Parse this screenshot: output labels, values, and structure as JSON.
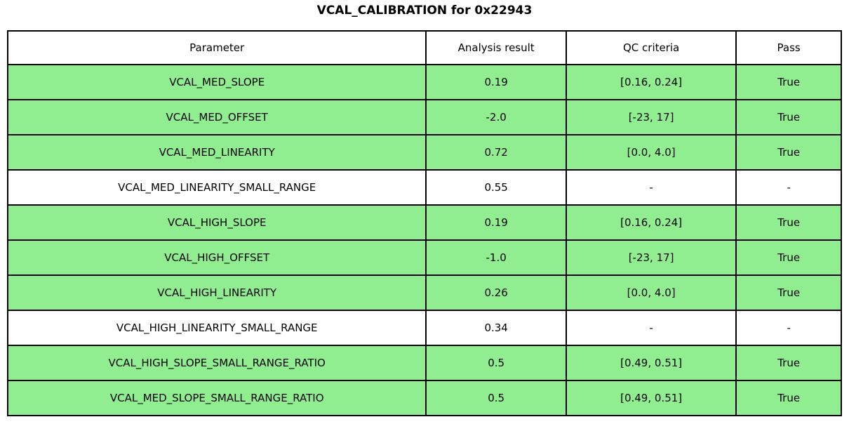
{
  "title": "VCAL_CALIBRATION for 0x22943",
  "colors": {
    "pass_row_bg": "#90EE90",
    "neutral_row_bg": "#FFFFFF",
    "border": "#000000",
    "text": "#000000"
  },
  "chart_data": {
    "type": "table",
    "title": "VCAL_CALIBRATION for 0x22943",
    "columns": [
      "Parameter",
      "Analysis result",
      "QC criteria",
      "Pass"
    ],
    "rows": [
      {
        "parameter": "VCAL_MED_SLOPE",
        "result": "0.19",
        "criteria": "[0.16, 0.24]",
        "pass": "True",
        "highlight": true
      },
      {
        "parameter": "VCAL_MED_OFFSET",
        "result": "-2.0",
        "criteria": "[-23, 17]",
        "pass": "True",
        "highlight": true
      },
      {
        "parameter": "VCAL_MED_LINEARITY",
        "result": "0.72",
        "criteria": "[0.0, 4.0]",
        "pass": "True",
        "highlight": true
      },
      {
        "parameter": "VCAL_MED_LINEARITY_SMALL_RANGE",
        "result": "0.55",
        "criteria": "-",
        "pass": "-",
        "highlight": false
      },
      {
        "parameter": "VCAL_HIGH_SLOPE",
        "result": "0.19",
        "criteria": "[0.16, 0.24]",
        "pass": "True",
        "highlight": true
      },
      {
        "parameter": "VCAL_HIGH_OFFSET",
        "result": "-1.0",
        "criteria": "[-23, 17]",
        "pass": "True",
        "highlight": true
      },
      {
        "parameter": "VCAL_HIGH_LINEARITY",
        "result": "0.26",
        "criteria": "[0.0, 4.0]",
        "pass": "True",
        "highlight": true
      },
      {
        "parameter": "VCAL_HIGH_LINEARITY_SMALL_RANGE",
        "result": "0.34",
        "criteria": "-",
        "pass": "-",
        "highlight": false
      },
      {
        "parameter": "VCAL_HIGH_SLOPE_SMALL_RANGE_RATIO",
        "result": "0.5",
        "criteria": "[0.49, 0.51]",
        "pass": "True",
        "highlight": true
      },
      {
        "parameter": "VCAL_MED_SLOPE_SMALL_RANGE_RATIO",
        "result": "0.5",
        "criteria": "[0.49, 0.51]",
        "pass": "True",
        "highlight": true
      }
    ]
  }
}
